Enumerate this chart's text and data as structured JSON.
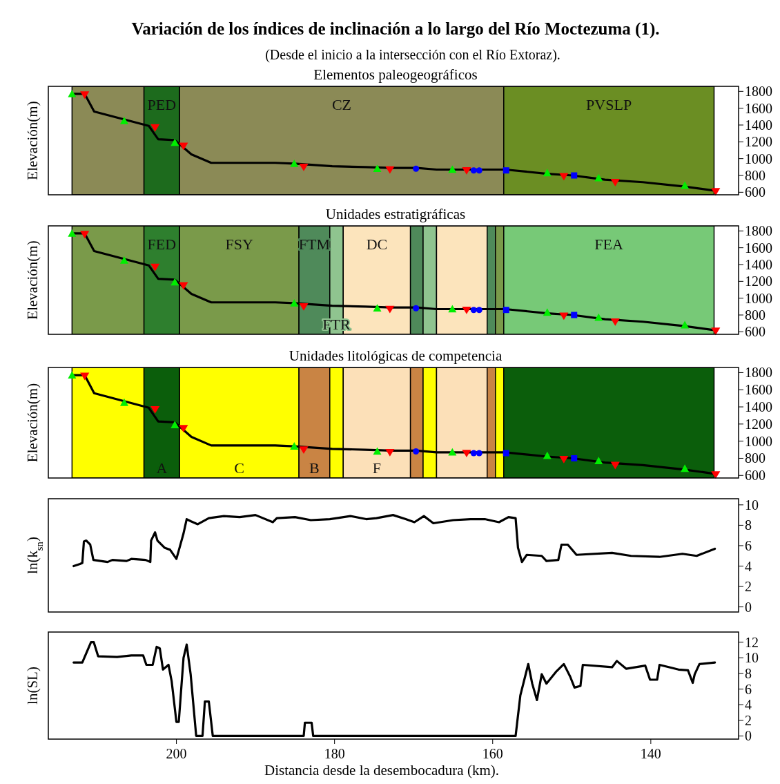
{
  "chart_data": [
    {
      "type": "line",
      "title": "Variación de los índices de inclinación a lo largo del Río Moctezuma (1).",
      "subtitle": "(Desde el inicio a la intersección con el Río Extoraz).",
      "annotations": [
        "Elementos paleogeográficos"
      ],
      "ylabel": "Elevación(m)",
      "xlim": [
        216.2,
        128.9
      ],
      "ylim": [
        570,
        1860
      ],
      "yticks": [
        600,
        800,
        1000,
        1200,
        1400,
        1600,
        1800
      ],
      "tick_labels": "y",
      "grid": false,
      "bands": [
        {
          "axis": "x",
          "from": 213.2,
          "to": 204.1,
          "label": null,
          "color": "#8b8a56"
        },
        {
          "axis": "x",
          "from": 204.1,
          "to": 199.6,
          "label": "PED",
          "color": "#1d6b1d"
        },
        {
          "axis": "x",
          "from": 199.6,
          "to": 158.6,
          "label": "CZ",
          "color": "#8b8a56"
        },
        {
          "axis": "x",
          "from": 158.6,
          "to": 132.0,
          "label": "PVSLP",
          "color": "#6b8e23"
        }
      ],
      "series": [
        {
          "type": "line",
          "color": "#000000",
          "marker": "none",
          "x": [
            213.2,
            211.6,
            210.4,
            203.5,
            202.3,
            200.2,
            198.1,
            195.6,
            187.5,
            185.1,
            180.3,
            176.1,
            172.8,
            169.6,
            167.1,
            158.4,
            153.1,
            149.9,
            145.8,
            141.0,
            135.9,
            132.0
          ],
          "values": [
            1770,
            1770,
            1560,
            1390,
            1230,
            1220,
            1050,
            950,
            950,
            940,
            910,
            900,
            890,
            890,
            870,
            870,
            820,
            800,
            750,
            720,
            670,
            620
          ]
        },
        {
          "type": "scatter",
          "color": "#00ee00",
          "marker": "triangle",
          "x": [
            213.2,
            206.6,
            200.2,
            185.1,
            174.6,
            165.1,
            153.1,
            146.6,
            135.7
          ],
          "values": [
            1770,
            1450,
            1190,
            940,
            880,
            870,
            830,
            770,
            680
          ]
        },
        {
          "type": "scatter",
          "color": "#ff0000",
          "marker": "triangle-down",
          "x": [
            211.6,
            202.7,
            199.1,
            183.9,
            173.0,
            163.3,
            151.0,
            144.5,
            131.8
          ],
          "values": [
            1760,
            1370,
            1150,
            900,
            870,
            860,
            790,
            720,
            610
          ]
        },
        {
          "type": "scatter",
          "color": "#0000ff",
          "marker": "circle",
          "x": [
            169.7,
            162.4,
            161.7
          ],
          "values": [
            880,
            860,
            860
          ]
        },
        {
          "type": "scatter",
          "color": "#0000ff",
          "marker": "square",
          "x": [
            158.3,
            149.7
          ],
          "values": [
            860,
            800
          ]
        }
      ]
    },
    {
      "type": "line",
      "title": "Unidades estratigráficas",
      "ylabel": "Elevación(m)",
      "xlim": [
        216.2,
        128.9
      ],
      "ylim": [
        570,
        1860
      ],
      "yticks": [
        600,
        800,
        1000,
        1200,
        1400,
        1600,
        1800
      ],
      "tick_labels": "y",
      "grid": false,
      "bands": [
        {
          "axis": "x",
          "from": 213.2,
          "to": 204.1,
          "label": null,
          "color": "#7a9a4a"
        },
        {
          "axis": "x",
          "from": 204.1,
          "to": 199.6,
          "label": "FED",
          "color": "#2e7f2e"
        },
        {
          "axis": "x",
          "from": 199.6,
          "to": 184.5,
          "label": "FSY",
          "color": "#7a9a4a"
        },
        {
          "axis": "x",
          "from": 184.5,
          "to": 180.6,
          "label": "FTM",
          "color": "#4f8a5a"
        },
        {
          "axis": "x",
          "from": 180.6,
          "to": 178.9,
          "label": "FTR",
          "color": "#8fc48f"
        },
        {
          "axis": "x",
          "from": 178.9,
          "to": 170.4,
          "label": "DC",
          "color": "#fce4bc"
        },
        {
          "axis": "x",
          "from": 170.4,
          "to": 168.8,
          "label": null,
          "color": "#4f8a5a"
        },
        {
          "axis": "x",
          "from": 168.8,
          "to": 167.1,
          "label": null,
          "color": "#8fc48f"
        },
        {
          "axis": "x",
          "from": 167.1,
          "to": 160.7,
          "label": null,
          "color": "#fce4bc"
        },
        {
          "axis": "x",
          "from": 160.7,
          "to": 159.65,
          "label": null,
          "color": "#4f8a5a"
        },
        {
          "axis": "x",
          "from": 159.65,
          "to": 158.6,
          "label": null,
          "color": "#7a9a4a"
        },
        {
          "axis": "x",
          "from": 158.6,
          "to": 132.0,
          "label": "FEA",
          "color": "#77c977"
        }
      ],
      "series": [
        {
          "type": "line",
          "color": "#000000",
          "marker": "none",
          "x": [
            213.2,
            211.6,
            210.4,
            203.5,
            202.3,
            200.2,
            198.1,
            195.6,
            187.5,
            185.1,
            180.3,
            176.1,
            172.8,
            169.6,
            167.1,
            158.4,
            153.1,
            149.9,
            145.8,
            141.0,
            135.9,
            132.0
          ],
          "values": [
            1770,
            1770,
            1560,
            1390,
            1230,
            1220,
            1050,
            950,
            950,
            940,
            910,
            900,
            890,
            890,
            870,
            870,
            820,
            800,
            750,
            720,
            670,
            620
          ]
        },
        {
          "type": "scatter",
          "color": "#00ee00",
          "marker": "triangle",
          "x": [
            213.2,
            206.6,
            200.2,
            185.1,
            174.6,
            165.1,
            153.1,
            146.6,
            135.7
          ],
          "values": [
            1770,
            1450,
            1190,
            940,
            880,
            870,
            830,
            770,
            680
          ]
        },
        {
          "type": "scatter",
          "color": "#ff0000",
          "marker": "triangle-down",
          "x": [
            211.6,
            202.7,
            199.1,
            183.9,
            173.0,
            163.3,
            151.0,
            144.5,
            131.8
          ],
          "values": [
            1760,
            1370,
            1150,
            900,
            870,
            860,
            790,
            720,
            610
          ]
        },
        {
          "type": "scatter",
          "color": "#0000ff",
          "marker": "circle",
          "x": [
            169.7,
            162.4,
            161.7
          ],
          "values": [
            880,
            860,
            860
          ]
        },
        {
          "type": "scatter",
          "color": "#0000ff",
          "marker": "square",
          "x": [
            158.3,
            149.7
          ],
          "values": [
            860,
            800
          ]
        }
      ]
    },
    {
      "type": "line",
      "title": "Unidades litológicas de competencia",
      "ylabel": "Elevación(m)",
      "xlim": [
        216.2,
        128.9
      ],
      "ylim": [
        570,
        1860
      ],
      "yticks": [
        600,
        800,
        1000,
        1200,
        1400,
        1600,
        1800
      ],
      "tick_labels": "y",
      "grid": false,
      "bands": [
        {
          "axis": "x",
          "from": 213.2,
          "to": 204.1,
          "label": null,
          "color": "#ffff00"
        },
        {
          "axis": "x",
          "from": 204.1,
          "to": 199.6,
          "label": "A",
          "color": "#0b5e0b"
        },
        {
          "axis": "x",
          "from": 199.6,
          "to": 184.5,
          "label": "C",
          "color": "#ffff00"
        },
        {
          "axis": "x",
          "from": 184.5,
          "to": 180.6,
          "label": "B",
          "color": "#c98444"
        },
        {
          "axis": "x",
          "from": 180.6,
          "to": 178.9,
          "label": null,
          "color": "#ffff00"
        },
        {
          "axis": "x",
          "from": 178.9,
          "to": 170.4,
          "label": "F",
          "color": "#fce0b8"
        },
        {
          "axis": "x",
          "from": 170.4,
          "to": 168.8,
          "label": null,
          "color": "#c98444"
        },
        {
          "axis": "x",
          "from": 168.8,
          "to": 167.1,
          "label": null,
          "color": "#ffff00"
        },
        {
          "axis": "x",
          "from": 167.1,
          "to": 160.7,
          "label": null,
          "color": "#fce0b8"
        },
        {
          "axis": "x",
          "from": 160.7,
          "to": 159.65,
          "label": null,
          "color": "#c98444"
        },
        {
          "axis": "x",
          "from": 159.65,
          "to": 158.6,
          "label": null,
          "color": "#ffff00"
        },
        {
          "axis": "x",
          "from": 158.6,
          "to": 132.0,
          "label": null,
          "color": "#0b5e0b"
        }
      ],
      "series": [
        {
          "type": "line",
          "color": "#000000",
          "marker": "none",
          "x": [
            213.2,
            211.6,
            210.4,
            203.5,
            202.3,
            200.2,
            198.1,
            195.6,
            187.5,
            185.1,
            180.3,
            176.1,
            172.8,
            169.6,
            167.1,
            158.4,
            153.1,
            149.9,
            145.8,
            141.0,
            135.9,
            132.0
          ],
          "values": [
            1770,
            1770,
            1560,
            1390,
            1230,
            1220,
            1050,
            950,
            950,
            940,
            910,
            900,
            890,
            890,
            870,
            870,
            820,
            800,
            750,
            720,
            670,
            620
          ]
        },
        {
          "type": "scatter",
          "color": "#00ee00",
          "marker": "triangle",
          "x": [
            213.2,
            206.6,
            200.2,
            185.1,
            174.6,
            165.1,
            153.1,
            146.6,
            135.7
          ],
          "values": [
            1770,
            1450,
            1190,
            940,
            880,
            870,
            830,
            770,
            680
          ]
        },
        {
          "type": "scatter",
          "color": "#ff0000",
          "marker": "triangle-down",
          "x": [
            211.6,
            202.7,
            199.1,
            183.9,
            173.0,
            163.3,
            151.0,
            144.5,
            131.8
          ],
          "values": [
            1760,
            1370,
            1150,
            900,
            870,
            860,
            790,
            720,
            610
          ]
        },
        {
          "type": "scatter",
          "color": "#0000ff",
          "marker": "circle",
          "x": [
            169.7,
            162.4,
            161.7
          ],
          "values": [
            880,
            860,
            860
          ]
        },
        {
          "type": "scatter",
          "color": "#0000ff",
          "marker": "square",
          "x": [
            158.3,
            149.7
          ],
          "values": [
            860,
            800
          ]
        }
      ]
    },
    {
      "type": "line",
      "ylabel": "ln(k$_{sn}$)",
      "xlim": [
        216.2,
        128.9
      ],
      "ylim": [
        -0.5,
        10.6
      ],
      "yticks": [
        0,
        2,
        4,
        6,
        8,
        10
      ],
      "tick_labels": "y",
      "grid": false,
      "series": [
        {
          "color": "#000000",
          "marker": "none",
          "x": [
            213.0,
            212.2,
            211.9,
            211.7,
            211.4,
            210.9,
            210.5,
            208.7,
            208.1,
            206.3,
            205.7,
            203.9,
            203.3,
            203.2,
            202.7,
            202.4,
            201.5,
            200.8,
            200.0,
            199.6,
            199.1,
            198.7,
            198.2,
            197.3,
            195.9,
            194.0,
            192.0,
            190.0,
            187.8,
            187.3,
            185.0,
            183.0,
            180.6,
            178.0,
            176.0,
            174.7,
            172.6,
            171.0,
            169.9,
            168.7,
            167.5,
            165.0,
            162.8,
            161.0,
            159.2,
            158.0,
            157.1,
            156.8,
            156.3,
            155.7,
            153.8,
            153.2,
            151.7,
            151.3,
            150.5,
            149.4,
            144.9,
            142.5,
            138.9,
            136.0,
            134.2,
            131.9
          ],
          "values": [
            4.0,
            4.2,
            4.3,
            6.4,
            6.5,
            6.1,
            4.6,
            4.4,
            4.6,
            4.5,
            4.7,
            4.6,
            4.4,
            6.5,
            7.3,
            6.5,
            5.8,
            5.6,
            4.7,
            5.8,
            7.2,
            8.6,
            8.4,
            8.1,
            8.7,
            8.9,
            8.8,
            9.0,
            8.3,
            8.7,
            8.8,
            8.5,
            8.6,
            8.9,
            8.6,
            8.7,
            9.0,
            8.6,
            8.3,
            8.9,
            8.2,
            8.5,
            8.6,
            8.6,
            8.3,
            8.8,
            8.7,
            5.8,
            4.4,
            5.1,
            5.0,
            4.5,
            4.6,
            6.1,
            6.1,
            5.1,
            5.3,
            5.0,
            4.9,
            5.2,
            5.0,
            5.7
          ]
        }
      ]
    },
    {
      "type": "line",
      "ylabel": "ln(SL)",
      "xlabel": "Distancia desde la desembocadura (km).",
      "xlim": [
        216.2,
        128.9
      ],
      "ylim": [
        -0.4,
        13.3
      ],
      "xticks": [
        200,
        180,
        160,
        140
      ],
      "yticks": [
        0,
        2,
        4,
        6,
        8,
        10,
        12
      ],
      "grid": false,
      "series": [
        {
          "color": "#000000",
          "marker": "none",
          "x": [
            213.0,
            211.9,
            211.65,
            210.8,
            210.45,
            209.9,
            207.5,
            205.7,
            204.2,
            203.8,
            203.0,
            202.5,
            202.1,
            201.7,
            201.0,
            200.6,
            200.0,
            199.7,
            199.1,
            198.7,
            198.2,
            197.5,
            196.7,
            196.4,
            195.9,
            195.4,
            183.9,
            183.75,
            182.9,
            182.7,
            157.1,
            156.5,
            155.9,
            155.5,
            155.0,
            154.4,
            153.8,
            153.2,
            152.0,
            151.0,
            150.2,
            149.65,
            148.9,
            148.6,
            144.9,
            144.3,
            143.1,
            140.7,
            140.1,
            139.2,
            138.9,
            136.5,
            135.3,
            134.7,
            134.45,
            133.85,
            131.9
          ],
          "values": [
            9.4,
            9.4,
            10.0,
            12.0,
            12.0,
            10.2,
            10.1,
            10.3,
            10.3,
            9.1,
            9.1,
            11.4,
            11.2,
            8.5,
            9.1,
            7.0,
            1.8,
            1.8,
            10.0,
            11.7,
            7.9,
            0,
            0,
            4.4,
            4.4,
            0,
            0,
            1.7,
            1.7,
            0,
            0,
            5.2,
            7.6,
            9.2,
            6.7,
            4.6,
            7.9,
            6.7,
            8.2,
            9.2,
            7.6,
            6.2,
            6.4,
            9.1,
            8.8,
            9.6,
            8.6,
            9.0,
            7.2,
            7.2,
            9.1,
            8.5,
            8.4,
            6.8,
            7.9,
            9.2,
            9.4
          ]
        }
      ]
    }
  ]
}
